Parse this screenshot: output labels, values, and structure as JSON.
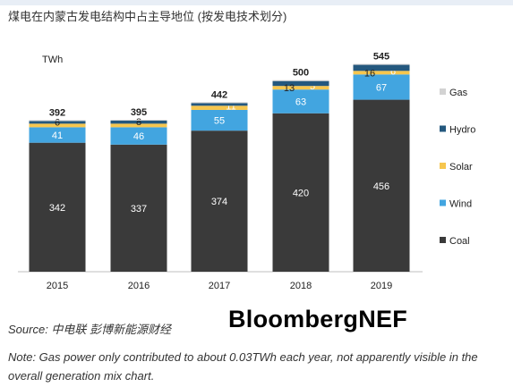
{
  "title": "煤电在内蒙古发电结构中占主导地位 (按发电技术划分)",
  "source": "Source: 中电联 彭博新能源财经",
  "brand": "BloombergNEF",
  "note": "Note: Gas power only contributed to about 0.03TWh each year, not apparently visible in the overall generation mix chart.",
  "chart_data": {
    "type": "bar",
    "stacked": true,
    "ylabel": "TWh",
    "categories": [
      "2015",
      "2016",
      "2017",
      "2018",
      "2019"
    ],
    "series": [
      {
        "name": "Coal",
        "color": "#3a3a3a",
        "values": [
          342,
          337,
          374,
          420,
          456
        ]
      },
      {
        "name": "Wind",
        "color": "#42a5e0",
        "values": [
          41,
          46,
          55,
          63,
          67
        ]
      },
      {
        "name": "Solar",
        "color": "#f6c64e",
        "values": [
          3,
          4,
          11,
          5,
          6
        ]
      },
      {
        "name": "Hydro",
        "color": "#24587e",
        "values": [
          6,
          8,
          2,
          13,
          16
        ]
      },
      {
        "name": "Gas",
        "color": "#d3d3d3",
        "values": [
          0.03,
          0.03,
          0.03,
          0.03,
          0.03
        ]
      }
    ],
    "segment_labels": [
      {
        "Coal": "342",
        "Wind": "41",
        "Hydro": "6"
      },
      {
        "Coal": "337",
        "Wind": "46",
        "Hydro": "8"
      },
      {
        "Coal": "374",
        "Wind": "55",
        "Solar": "11"
      },
      {
        "Coal": "420",
        "Wind": "63",
        "Solar": "5",
        "Hydro": "13"
      },
      {
        "Coal": "456",
        "Wind": "67",
        "Solar": "6",
        "Hydro": "16"
      }
    ],
    "totals": [
      "392",
      "395",
      "442",
      "500",
      "545"
    ],
    "legend_order": [
      "Gas",
      "Hydro",
      "Solar",
      "Wind",
      "Coal"
    ],
    "legend_position": "right",
    "ylim": [
      0,
      560
    ],
    "grid": false
  }
}
